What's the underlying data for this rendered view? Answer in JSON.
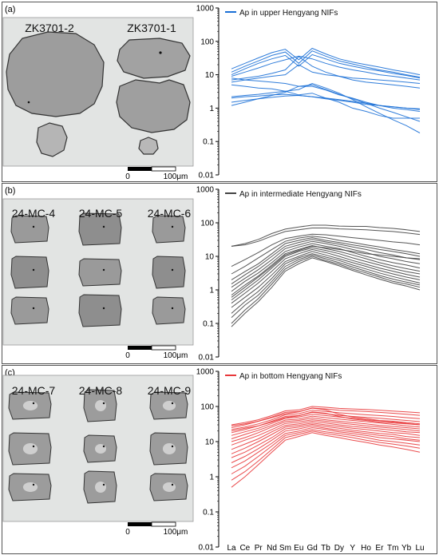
{
  "figure": {
    "panels": [
      {
        "label": "(a)",
        "legend": "Ap in upper Hengyang NIFs",
        "color": "#1a6fd6",
        "samples": [
          "ZK3701-2",
          "ZK3701-1"
        ],
        "scale_bar": {
          "start": "0",
          "end": "100μm"
        }
      },
      {
        "label": "(b)",
        "legend": "Ap in intermediate Hengyang NIFs",
        "color": "#444444",
        "samples": [
          "24-MC-4",
          "24-MC-5",
          "24-MC-6"
        ],
        "scale_bar": {
          "start": "0",
          "end": "100μm"
        }
      },
      {
        "label": "(c)",
        "legend": "Ap in bottom Hengyang NIFs",
        "color": "#e8383b",
        "samples": [
          "24-MC-7",
          "24-MC-8",
          "24-MC-9"
        ],
        "scale_bar": {
          "start": "0",
          "end": "100μm"
        }
      }
    ]
  },
  "chart_data": [
    {
      "type": "line",
      "title": "Ap in upper Hengyang NIFs",
      "y_scale": "log",
      "ylim": [
        0.01,
        1000
      ],
      "y_ticks": [
        "0.01",
        "0.1",
        "1",
        "10",
        "100",
        "1000"
      ],
      "x_ticks": [
        "La",
        "Ce",
        "Pr",
        "Nd",
        "Sm",
        "Eu",
        "Gd",
        "Tb",
        "Dy",
        "Y",
        "Ho",
        "Er",
        "Tm",
        "Yb",
        "Lu"
      ],
      "color": "#1a6fd6",
      "series": [
        {
          "values": [
            15,
            22,
            32,
            46,
            58,
            28,
            62,
            42,
            30,
            24,
            20,
            17,
            14,
            12,
            10
          ]
        },
        {
          "values": [
            12,
            18,
            26,
            38,
            48,
            22,
            52,
            36,
            26,
            21,
            17,
            14,
            12,
            10,
            8.5
          ]
        },
        {
          "values": [
            10,
            15,
            22,
            30,
            38,
            18,
            40,
            30,
            22,
            18,
            15,
            13,
            11,
            9.5,
            8
          ]
        },
        {
          "values": [
            9,
            12,
            16,
            22,
            28,
            36,
            30,
            22,
            17,
            14,
            12,
            10,
            9,
            8,
            7
          ]
        },
        {
          "values": [
            7,
            8,
            9,
            11,
            14,
            35,
            18,
            12,
            9,
            7,
            6,
            5.5,
            5,
            4.5,
            4
          ]
        },
        {
          "values": [
            6,
            7,
            8,
            9,
            10,
            20,
            12,
            10,
            9,
            8,
            7.5,
            7,
            6.5,
            6,
            5.5
          ]
        },
        {
          "values": [
            8,
            7,
            6.5,
            6,
            5.5,
            4.5,
            4.5,
            3.5,
            2.5,
            2,
            1.5,
            1.2,
            1,
            0.9,
            0.8
          ]
        },
        {
          "values": [
            5,
            4.5,
            4,
            3.8,
            3.2,
            2.5,
            2.8,
            2,
            1.5,
            1,
            0.8,
            0.6,
            0.5,
            0.5,
            0.5
          ]
        },
        {
          "values": [
            2.2,
            2.4,
            2.6,
            2.9,
            3.2,
            3.6,
            5.5,
            4,
            2.8,
            1.8,
            1.1,
            0.7,
            0.45,
            0.3,
            0.18
          ]
        },
        {
          "values": [
            1.2,
            1.5,
            1.9,
            2.4,
            3,
            4.5,
            5,
            3.6,
            2.6,
            1.9,
            1.4,
            1,
            0.75,
            0.55,
            0.4
          ]
        },
        {
          "values": [
            2,
            2.2,
            2.3,
            2.5,
            2.6,
            2.4,
            2.2,
            1.9,
            1.7,
            1.5,
            1.3,
            1.2,
            1.1,
            1,
            0.9
          ]
        },
        {
          "values": [
            1.5,
            1.7,
            1.9,
            2.1,
            2.3,
            2.4,
            2.2,
            2,
            1.8,
            1.6,
            1.4,
            1.2,
            1.1,
            1,
            0.95
          ]
        }
      ]
    },
    {
      "type": "line",
      "title": "Ap in intermediate Hengyang NIFs",
      "y_scale": "log",
      "ylim": [
        0.01,
        1000
      ],
      "y_ticks": [
        "0.01",
        "0.1",
        "1",
        "10",
        "100",
        "1000"
      ],
      "x_ticks": [
        "La",
        "Ce",
        "Pr",
        "Nd",
        "Sm",
        "Eu",
        "Gd",
        "Tb",
        "Dy",
        "Y",
        "Ho",
        "Er",
        "Tm",
        "Yb",
        "Lu"
      ],
      "color": "#444444",
      "series": [
        {
          "values": [
            20,
            24,
            32,
            48,
            65,
            75,
            85,
            85,
            80,
            78,
            78,
            72,
            68,
            62,
            55
          ]
        },
        {
          "values": [
            20,
            22,
            28,
            40,
            55,
            62,
            70,
            70,
            66,
            64,
            62,
            58,
            55,
            50,
            45
          ]
        },
        {
          "values": [
            5,
            8,
            13,
            22,
            34,
            40,
            46,
            44,
            40,
            36,
            33,
            30,
            27,
            25,
            22
          ]
        },
        {
          "values": [
            2,
            3.5,
            6,
            12,
            24,
            30,
            36,
            30,
            26,
            22,
            19,
            16,
            14,
            12,
            10
          ]
        },
        {
          "values": [
            1.5,
            2.8,
            5,
            10,
            20,
            26,
            32,
            27,
            23,
            19,
            16,
            13,
            11,
            9,
            8
          ]
        },
        {
          "values": [
            1.2,
            2.2,
            4,
            8,
            17,
            22,
            28,
            24,
            20,
            16,
            13,
            10,
            8.5,
            7,
            6
          ]
        },
        {
          "values": [
            0.9,
            1.8,
            3.2,
            6.5,
            14,
            19,
            24,
            20,
            17,
            13,
            10,
            8,
            6.5,
            5.5,
            4.5
          ]
        },
        {
          "values": [
            0.7,
            1.4,
            2.6,
            5.5,
            12,
            16,
            21,
            17,
            14,
            11,
            8.5,
            6.5,
            5.2,
            4.3,
            3.6
          ]
        },
        {
          "values": [
            0.5,
            1,
            2,
            4.5,
            10,
            14,
            18,
            15,
            12,
            9,
            7,
            5.5,
            4.3,
            3.5,
            3
          ]
        },
        {
          "values": [
            0.4,
            0.8,
            1.6,
            3.6,
            8.5,
            12,
            16,
            13,
            10,
            7.5,
            5.8,
            4.5,
            3.6,
            2.9,
            2.4
          ]
        },
        {
          "values": [
            0.3,
            0.6,
            1.2,
            2.8,
            7,
            10,
            14,
            11,
            8.5,
            6.5,
            5,
            3.8,
            3,
            2.4,
            2
          ]
        },
        {
          "values": [
            0.2,
            0.45,
            0.9,
            2.2,
            6,
            9,
            12,
            9.5,
            7.5,
            5.5,
            4.2,
            3.2,
            2.5,
            2,
            1.6
          ]
        },
        {
          "values": [
            0.15,
            0.35,
            0.7,
            1.8,
            5,
            8,
            11,
            8.5,
            6.5,
            4.8,
            3.6,
            2.7,
            2.1,
            1.7,
            1.4
          ]
        },
        {
          "values": [
            0.1,
            0.25,
            0.55,
            1.5,
            4.2,
            7,
            10,
            7.5,
            5.8,
            4.2,
            3.2,
            2.4,
            1.8,
            1.5,
            1.2
          ]
        },
        {
          "values": [
            0.08,
            0.2,
            0.45,
            1.2,
            3.6,
            6,
            9,
            7,
            5.2,
            3.8,
            2.8,
            2.1,
            1.6,
            1.3,
            1
          ]
        },
        {
          "values": [
            3,
            5,
            9,
            16,
            28,
            35,
            40,
            36,
            30,
            26,
            22,
            19,
            16,
            14,
            12
          ]
        },
        {
          "values": [
            0.6,
            1.2,
            2.4,
            5,
            11,
            15,
            20,
            18,
            16,
            14,
            12,
            11,
            10,
            9,
            8.5
          ]
        }
      ]
    },
    {
      "type": "line",
      "title": "Ap in bottom Hengyang NIFs",
      "y_scale": "log",
      "ylim": [
        0.01,
        1000
      ],
      "y_ticks": [
        "0.01",
        "0.1",
        "1",
        "10",
        "100",
        "1000"
      ],
      "x_ticks": [
        "La",
        "Ce",
        "Pr",
        "Nd",
        "Sm",
        "Eu",
        "Gd",
        "Tb",
        "Dy",
        "Y",
        "Ho",
        "Er",
        "Tm",
        "Yb",
        "Lu"
      ],
      "color": "#e8383b",
      "series": [
        {
          "values": [
            30,
            35,
            42,
            55,
            75,
            80,
            100,
            95,
            88,
            85,
            82,
            78,
            74,
            70,
            66
          ]
        },
        {
          "values": [
            25,
            30,
            38,
            50,
            68,
            72,
            90,
            85,
            78,
            75,
            72,
            68,
            64,
            60,
            56
          ]
        },
        {
          "values": [
            22,
            26,
            32,
            42,
            58,
            62,
            78,
            72,
            66,
            62,
            58,
            55,
            52,
            48,
            45
          ]
        },
        {
          "values": [
            18,
            22,
            28,
            38,
            52,
            55,
            68,
            62,
            56,
            52,
            49,
            46,
            43,
            40,
            37
          ]
        },
        {
          "values": [
            15,
            19,
            24,
            33,
            46,
            50,
            60,
            55,
            50,
            46,
            42,
            39,
            36,
            33,
            30
          ]
        },
        {
          "values": [
            12,
            16,
            21,
            29,
            41,
            44,
            53,
            48,
            44,
            40,
            37,
            34,
            31,
            28,
            26
          ]
        },
        {
          "values": [
            10,
            13,
            18,
            26,
            37,
            40,
            47,
            42,
            38,
            35,
            32,
            29,
            27,
            25,
            23
          ]
        },
        {
          "values": [
            8,
            11,
            15,
            22,
            33,
            36,
            42,
            38,
            34,
            31,
            28,
            26,
            24,
            22,
            20
          ]
        },
        {
          "values": [
            6,
            8.5,
            12,
            19,
            29,
            32,
            38,
            34,
            30,
            27,
            25,
            23,
            21,
            19,
            18
          ]
        },
        {
          "values": [
            4.5,
            6.5,
            10,
            16,
            26,
            29,
            34,
            30,
            27,
            24,
            22,
            20,
            18,
            17,
            15
          ]
        },
        {
          "values": [
            3.5,
            5,
            8,
            13,
            23,
            26,
            31,
            27,
            24,
            21,
            19,
            17,
            16,
            14,
            13
          ]
        },
        {
          "values": [
            2.5,
            3.8,
            6.3,
            11,
            20,
            23,
            28,
            24,
            21,
            19,
            17,
            15,
            14,
            12,
            11
          ]
        },
        {
          "values": [
            1.8,
            2.8,
            5,
            9,
            17,
            20,
            25,
            22,
            19,
            17,
            15,
            13,
            12,
            11,
            10
          ]
        },
        {
          "values": [
            1.2,
            2,
            3.8,
            7.5,
            15,
            18,
            22,
            19,
            17,
            15,
            13,
            11,
            10,
            9,
            8
          ]
        },
        {
          "values": [
            0.8,
            1.4,
            2.8,
            6,
            13,
            16,
            20,
            17,
            15,
            13,
            11,
            9.5,
            8.5,
            7.5,
            6.5
          ]
        },
        {
          "values": [
            0.5,
            1,
            2.2,
            5,
            11,
            14,
            18,
            15,
            13,
            11,
            9.5,
            8,
            7,
            6,
            5
          ]
        },
        {
          "values": [
            28,
            32,
            38,
            48,
            62,
            70,
            90,
            80,
            60,
            50,
            45,
            40,
            38,
            35,
            32
          ]
        },
        {
          "values": [
            20,
            24,
            28,
            36,
            48,
            54,
            70,
            64,
            52,
            44,
            40,
            36,
            34,
            32,
            30
          ]
        }
      ]
    }
  ]
}
